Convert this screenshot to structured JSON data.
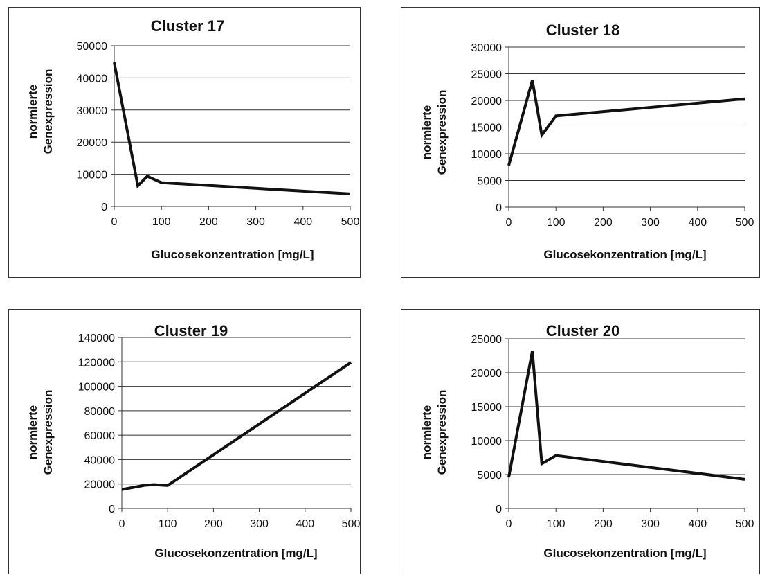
{
  "chart_data": [
    {
      "type": "line",
      "title": "Cluster 17",
      "xlabel": "Glucosekonzentration [mg/L]",
      "ylabel": [
        "normierte",
        "Genexpression"
      ],
      "x": [
        0,
        50,
        70,
        100,
        500
      ],
      "series": [
        {
          "values": [
            44800,
            6400,
            9400,
            7400,
            3900
          ]
        }
      ],
      "xlim": [
        0,
        500
      ],
      "xticks": [
        0,
        100,
        200,
        300,
        400,
        500
      ],
      "ylim": [
        0,
        50000
      ],
      "yticks": [
        0,
        10000,
        20000,
        30000,
        40000,
        50000
      ],
      "grid": "horizontal",
      "line_color": "#111111"
    },
    {
      "type": "line",
      "title": "Cluster 18",
      "xlabel": "Glucosekonzentration [mg/L]",
      "ylabel": [
        "normierte",
        "Genexpression"
      ],
      "x": [
        0,
        50,
        70,
        100,
        500
      ],
      "series": [
        {
          "values": [
            7800,
            23800,
            13500,
            17100,
            20300
          ]
        }
      ],
      "xlim": [
        0,
        500
      ],
      "xticks": [
        0,
        100,
        200,
        300,
        400,
        500
      ],
      "ylim": [
        0,
        30000
      ],
      "yticks": [
        0,
        5000,
        10000,
        15000,
        20000,
        25000,
        30000
      ],
      "grid": "horizontal",
      "line_color": "#111111"
    },
    {
      "type": "line",
      "title": "Cluster 19",
      "xlabel": "Glucosekonzentration [mg/L]",
      "ylabel": [
        "normierte",
        "Genexpression"
      ],
      "x": [
        0,
        50,
        70,
        100,
        500
      ],
      "series": [
        {
          "values": [
            15500,
            19000,
            19500,
            18800,
            119500
          ]
        }
      ],
      "xlim": [
        0,
        500
      ],
      "xticks": [
        0,
        100,
        200,
        300,
        400,
        500
      ],
      "ylim": [
        0,
        140000
      ],
      "yticks": [
        0,
        20000,
        40000,
        60000,
        80000,
        100000,
        120000,
        140000
      ],
      "grid": "horizontal",
      "line_color": "#111111"
    },
    {
      "type": "line",
      "title": "Cluster 20",
      "xlabel": "Glucosekonzentration [mg/L]",
      "ylabel": [
        "normierte",
        "Genexpression"
      ],
      "x": [
        0,
        50,
        70,
        100,
        500
      ],
      "series": [
        {
          "values": [
            4600,
            23200,
            6600,
            7800,
            4300
          ]
        }
      ],
      "xlim": [
        0,
        500
      ],
      "xticks": [
        0,
        100,
        200,
        300,
        400,
        500
      ],
      "ylim": [
        0,
        25000
      ],
      "yticks": [
        0,
        5000,
        10000,
        15000,
        20000,
        25000
      ],
      "grid": "horizontal",
      "line_color": "#111111"
    }
  ]
}
